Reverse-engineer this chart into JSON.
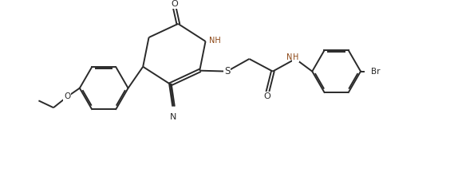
{
  "background_color": "#ffffff",
  "line_color": "#2a2a2a",
  "line_width": 1.4,
  "figsize": [
    5.69,
    2.16
  ],
  "dpi": 100,
  "xlim": [
    0,
    10.5
  ],
  "ylim": [
    -0.3,
    4.0
  ]
}
